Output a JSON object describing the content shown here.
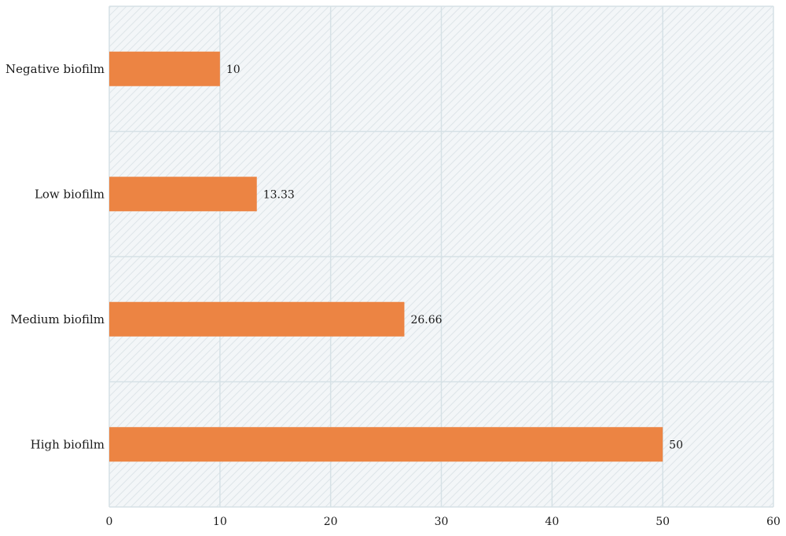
{
  "chart_data": {
    "type": "bar",
    "orientation": "horizontal",
    "categories": [
      "Negative biofilm",
      "Low biofilm",
      "Medium biofilm",
      "High biofilm"
    ],
    "values": [
      10,
      13.33,
      26.66,
      50
    ],
    "data_labels": [
      "10",
      "13.33",
      "26.66",
      "50"
    ],
    "xlim": [
      0,
      60
    ],
    "xticks": [
      0,
      10,
      20,
      30,
      40,
      50,
      60
    ],
    "xtick_labels": [
      "0",
      "10",
      "20",
      "30",
      "40",
      "50",
      "60"
    ],
    "title": "",
    "xlabel": "",
    "ylabel": "",
    "grid": true,
    "legend": "none",
    "colors": {
      "bar": "#ec8443",
      "plot_background": "#f3f6f8",
      "hatch": "#dde4e8",
      "gridline": "#d6e1e6"
    }
  }
}
